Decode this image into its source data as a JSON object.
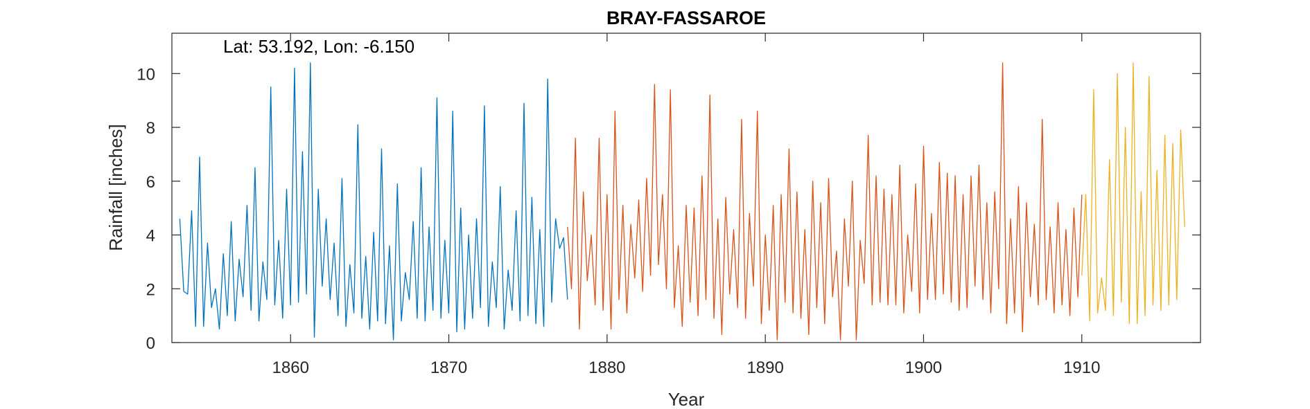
{
  "chart_data": {
    "type": "line",
    "title": "BRAY-FASSAROE",
    "annotation": "Lat: 53.192, Lon: -6.150",
    "xlabel": "Year",
    "ylabel": "Rainfall [inches]",
    "xlim": [
      1852.5,
      1917.5
    ],
    "ylim": [
      0,
      11.5
    ],
    "xticks": [
      1860,
      1870,
      1880,
      1890,
      1900,
      1910
    ],
    "yticks": [
      0,
      2,
      4,
      6,
      8,
      10
    ],
    "grid": false,
    "series": [
      {
        "color": "#0072BD",
        "x": [
          1853.0,
          1853.25,
          1853.5,
          1853.75,
          1854.0,
          1854.25,
          1854.5,
          1854.75,
          1855.0,
          1855.25,
          1855.5,
          1855.75,
          1856.0,
          1856.25,
          1856.5,
          1856.75,
          1857.0,
          1857.25,
          1857.5,
          1857.75,
          1858.0,
          1858.25,
          1858.5,
          1858.75,
          1859.0,
          1859.25,
          1859.5,
          1859.75,
          1860.0,
          1860.25,
          1860.5,
          1860.75,
          1861.0,
          1861.25,
          1861.5,
          1861.75,
          1862.0,
          1862.25,
          1862.5,
          1862.75,
          1863.0,
          1863.25,
          1863.5,
          1863.75,
          1864.0,
          1864.25,
          1864.5,
          1864.75,
          1865.0,
          1865.25,
          1865.5,
          1865.75,
          1866.0,
          1866.25,
          1866.5,
          1866.75,
          1867.0,
          1867.25,
          1867.5,
          1867.75,
          1868.0,
          1868.25,
          1868.5,
          1868.75,
          1869.0,
          1869.25,
          1869.5,
          1869.75,
          1870.0,
          1870.25,
          1870.5,
          1870.75,
          1871.0,
          1871.25,
          1871.5,
          1871.75,
          1872.0,
          1872.25,
          1872.5,
          1872.75,
          1873.0,
          1873.25,
          1873.5,
          1873.75,
          1874.0,
          1874.25,
          1874.5,
          1874.75,
          1875.0,
          1875.25,
          1875.5,
          1875.75,
          1876.0,
          1876.25,
          1876.5,
          1876.75,
          1877.0,
          1877.25,
          1877.5
        ],
        "y": [
          4.6,
          1.9,
          1.8,
          4.9,
          0.6,
          6.9,
          0.6,
          3.7,
          1.3,
          2.0,
          0.5,
          3.3,
          1.0,
          4.5,
          0.8,
          3.1,
          1.7,
          5.1,
          1.2,
          6.5,
          0.8,
          3.0,
          1.6,
          9.5,
          1.4,
          3.8,
          0.9,
          5.7,
          1.4,
          10.2,
          1.5,
          7.1,
          1.8,
          10.4,
          0.2,
          5.7,
          2.1,
          4.6,
          1.6,
          3.7,
          1.0,
          6.1,
          0.6,
          2.9,
          1.1,
          8.1,
          0.9,
          3.2,
          0.5,
          4.1,
          0.8,
          7.2,
          0.7,
          3.6,
          0.1,
          5.9,
          0.8,
          2.6,
          1.6,
          4.5,
          0.9,
          6.5,
          0.8,
          4.3,
          1.2,
          9.1,
          0.9,
          3.8,
          1.1,
          8.6,
          0.4,
          5.0,
          0.5,
          4.0,
          0.9,
          4.6,
          1.3,
          8.8,
          0.6,
          3.0,
          1.3,
          5.8,
          0.5,
          2.7,
          1.2,
          4.9,
          0.8,
          8.9,
          1.0,
          5.4,
          0.7,
          4.2,
          0.6,
          9.8,
          1.5,
          4.6,
          3.5,
          3.9,
          1.6
        ]
      },
      {
        "color": "#D95319",
        "x": [
          1877.5,
          1877.75,
          1878.0,
          1878.25,
          1878.5,
          1878.75,
          1879.0,
          1879.25,
          1879.5,
          1879.75,
          1880.0,
          1880.25,
          1880.5,
          1880.75,
          1881.0,
          1881.25,
          1881.5,
          1881.75,
          1882.0,
          1882.25,
          1882.5,
          1882.75,
          1883.0,
          1883.25,
          1883.5,
          1883.75,
          1884.0,
          1884.25,
          1884.5,
          1884.75,
          1885.0,
          1885.25,
          1885.5,
          1885.75,
          1886.0,
          1886.25,
          1886.5,
          1886.75,
          1887.0,
          1887.25,
          1887.5,
          1887.75,
          1888.0,
          1888.25,
          1888.5,
          1888.75,
          1889.0,
          1889.25,
          1889.5,
          1889.75,
          1890.0,
          1890.25,
          1890.5,
          1890.75,
          1891.0,
          1891.25,
          1891.5,
          1891.75,
          1892.0,
          1892.25,
          1892.5,
          1892.75,
          1893.0,
          1893.25,
          1893.5,
          1893.75,
          1894.0,
          1894.25,
          1894.5,
          1894.75,
          1895.0,
          1895.25,
          1895.5,
          1895.75,
          1896.0,
          1896.25,
          1896.5,
          1896.75,
          1897.0,
          1897.25,
          1897.5,
          1897.75,
          1898.0,
          1898.25,
          1898.5,
          1898.75,
          1899.0,
          1899.25,
          1899.5,
          1899.75,
          1900.0,
          1900.25,
          1900.5,
          1900.75,
          1901.0,
          1901.25,
          1901.5,
          1901.75,
          1902.0,
          1902.25,
          1902.5,
          1902.75,
          1903.0,
          1903.25,
          1903.5,
          1903.75,
          1904.0,
          1904.25,
          1904.5,
          1904.75,
          1905.0,
          1905.25,
          1905.5,
          1905.75,
          1906.0,
          1906.25,
          1906.5,
          1906.75,
          1907.0,
          1907.25,
          1907.5,
          1907.75,
          1908.0,
          1908.25,
          1908.5,
          1908.75,
          1909.0,
          1909.25,
          1909.5,
          1909.75,
          1910.0
        ],
        "y": [
          4.3,
          2.0,
          7.6,
          0.5,
          5.6,
          2.3,
          4.0,
          1.4,
          7.6,
          1.2,
          5.5,
          0.5,
          8.6,
          1.6,
          5.1,
          1.1,
          4.4,
          2.4,
          5.3,
          1.9,
          6.1,
          2.5,
          9.6,
          2.9,
          5.5,
          2.0,
          9.4,
          1.3,
          3.6,
          0.6,
          5.1,
          1.5,
          5.0,
          1.0,
          6.2,
          1.6,
          9.2,
          0.9,
          4.6,
          0.3,
          5.4,
          1.8,
          4.2,
          1.3,
          8.3,
          0.9,
          4.8,
          2.1,
          8.6,
          0.7,
          4.0,
          1.2,
          5.1,
          0.1,
          5.5,
          1.5,
          7.2,
          1.1,
          5.6,
          0.9,
          4.2,
          0.3,
          6.0,
          1.3,
          5.2,
          0.7,
          6.1,
          1.7,
          3.4,
          0.1,
          4.6,
          2.1,
          6.0,
          0.1,
          3.8,
          2.2,
          7.7,
          1.4,
          6.2,
          1.5,
          5.7,
          1.4,
          5.5,
          1.4,
          6.6,
          1.1,
          4.0,
          1.9,
          5.9,
          1.1,
          7.3,
          1.6,
          4.8,
          1.6,
          6.7,
          1.8,
          6.3,
          1.5,
          6.2,
          1.2,
          5.5,
          1.3,
          6.2,
          2.1,
          6.6,
          1.6,
          5.2,
          1.1,
          5.6,
          2.0,
          10.4,
          0.7,
          4.6,
          1.1,
          5.8,
          0.4,
          5.2,
          1.7,
          4.4,
          1.4,
          8.3,
          1.6,
          4.3,
          1.1,
          5.2,
          1.4,
          4.2,
          1.0,
          5.0,
          1.7,
          5.5
        ]
      },
      {
        "color": "#EDB120",
        "x": [
          1910.0,
          1910.25,
          1910.5,
          1910.75,
          1911.0,
          1911.25,
          1911.5,
          1911.75,
          1912.0,
          1912.25,
          1912.5,
          1912.75,
          1913.0,
          1913.25,
          1913.5,
          1913.75,
          1914.0,
          1914.25,
          1914.5,
          1914.75,
          1915.0,
          1915.25,
          1915.5,
          1915.75,
          1916.0,
          1916.25,
          1916.5
        ],
        "y": [
          2.5,
          5.5,
          0.8,
          9.4,
          1.1,
          2.4,
          1.2,
          6.8,
          1.0,
          10.0,
          1.5,
          8.0,
          0.7,
          10.4,
          0.7,
          5.6,
          1.0,
          9.9,
          1.4,
          6.4,
          1.2,
          7.7,
          1.4,
          7.4,
          1.6,
          7.9,
          4.3
        ]
      }
    ]
  }
}
